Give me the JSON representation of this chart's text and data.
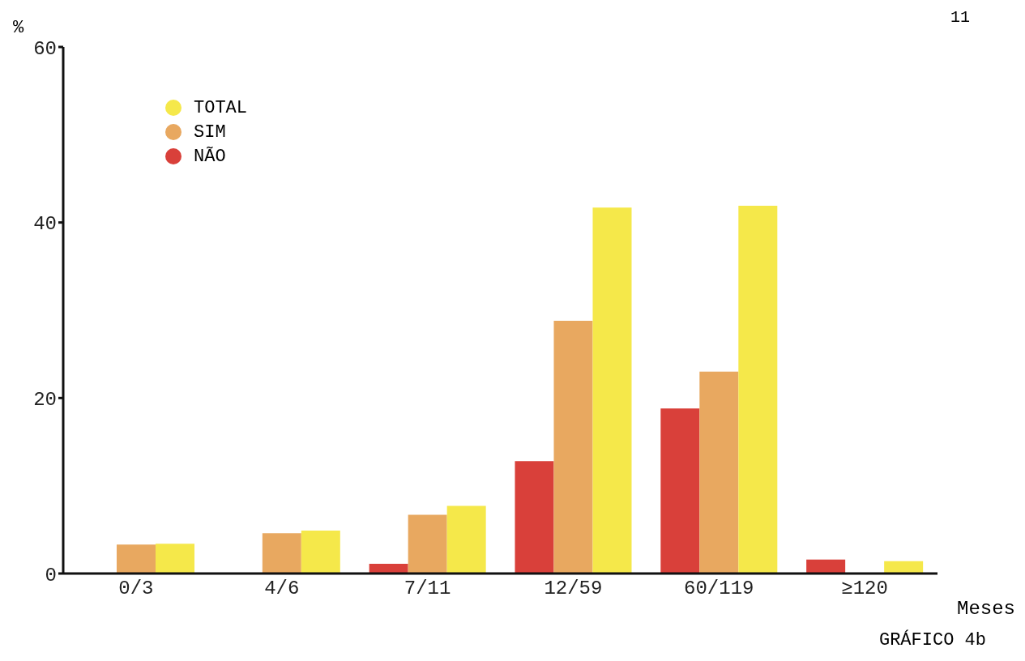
{
  "chart_data": {
    "type": "bar",
    "title": "GRÁFICO 4b",
    "xlabel": "Meses",
    "ylabel": "%",
    "annotations": [
      "11"
    ],
    "categories": [
      "0/3",
      "4/6",
      "7/11",
      "12/59",
      "60/119",
      "≥120"
    ],
    "series": [
      {
        "name": "NÃO",
        "color": "#d9403a",
        "values": [
          null,
          null,
          1.1,
          12.8,
          18.8,
          1.6
        ]
      },
      {
        "name": "SIM",
        "color": "#e8a860",
        "values": [
          3.3,
          4.6,
          6.7,
          28.8,
          23.0,
          null
        ]
      },
      {
        "name": "TOTAL",
        "color": "#f5e84a",
        "values": [
          3.4,
          4.9,
          7.7,
          41.7,
          41.9,
          1.4
        ]
      }
    ],
    "ylim": [
      0,
      60
    ],
    "yticks": [
      0,
      20,
      40,
      60
    ],
    "legend": "top left"
  }
}
